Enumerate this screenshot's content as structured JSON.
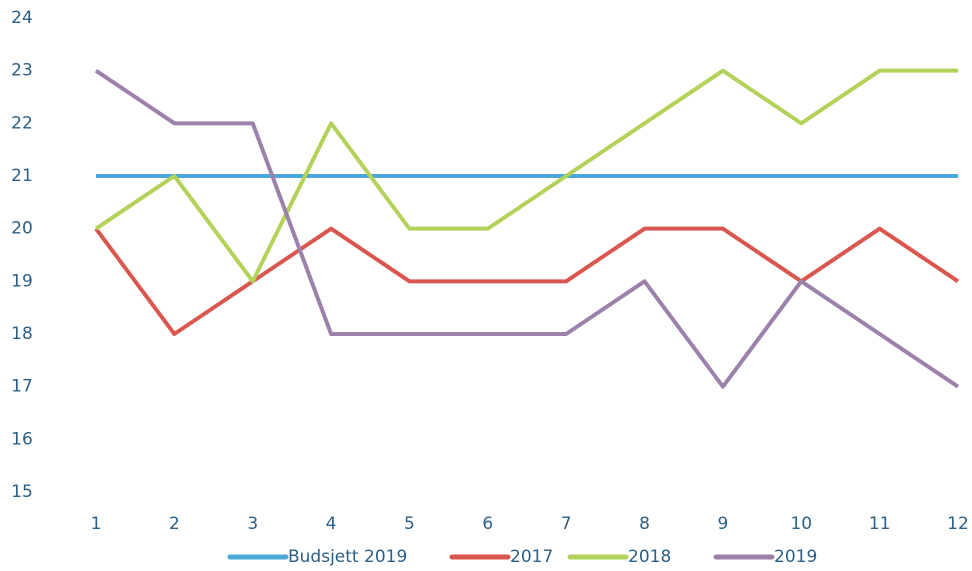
{
  "chart_data": {
    "type": "line",
    "categories": [
      "1",
      "2",
      "3",
      "4",
      "5",
      "6",
      "7",
      "8",
      "9",
      "10",
      "11",
      "12"
    ],
    "series": [
      {
        "name": "Budsjett 2019",
        "color": "#4aa8d8",
        "values": [
          21,
          21,
          21,
          21,
          21,
          21,
          21,
          21,
          21,
          21,
          21,
          21
        ]
      },
      {
        "name": "2017",
        "color": "#d9574f",
        "values": [
          20,
          18,
          19,
          20,
          19,
          19,
          19,
          20,
          20,
          19,
          20,
          19
        ]
      },
      {
        "name": "2018",
        "color": "#b3d25a",
        "values": [
          20,
          21,
          19,
          22,
          20,
          20,
          21,
          22,
          23,
          22,
          23,
          23
        ]
      },
      {
        "name": "2019",
        "color": "#9c82aa",
        "values": [
          23,
          22,
          22,
          18,
          18,
          18,
          18,
          19,
          17,
          19,
          18,
          17
        ]
      }
    ],
    "ylim": [
      15,
      24
    ],
    "yticks": [
      15,
      16,
      17,
      18,
      19,
      20,
      21,
      22,
      23,
      24
    ],
    "grid": false,
    "legend": "bottom"
  }
}
